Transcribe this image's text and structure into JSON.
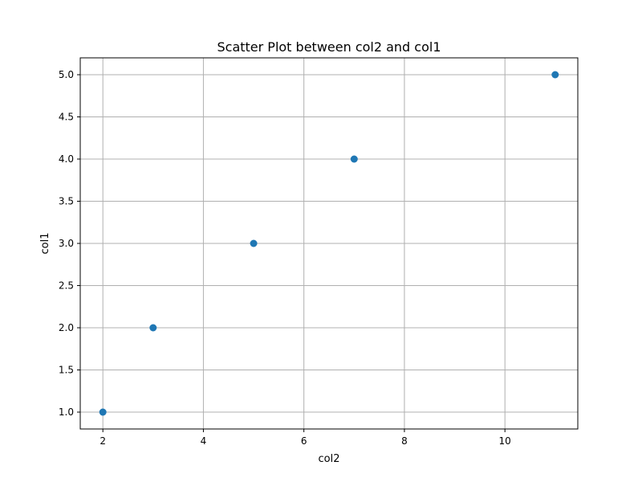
{
  "chart_data": {
    "type": "scatter",
    "title": "Scatter Plot between col2 and col1",
    "xlabel": "col2",
    "ylabel": "col1",
    "x": [
      2,
      3,
      5,
      7,
      11
    ],
    "y": [
      1.0,
      2.0,
      3.0,
      4.0,
      5.0
    ],
    "xlim": [
      1.55,
      11.45
    ],
    "ylim": [
      0.8,
      5.2
    ],
    "xticks": [
      2,
      4,
      6,
      8,
      10
    ],
    "xtick_labels": [
      "2",
      "4",
      "6",
      "8",
      "10"
    ],
    "yticks": [
      1.0,
      1.5,
      2.0,
      2.5,
      3.0,
      3.5,
      4.0,
      4.5,
      5.0
    ],
    "ytick_labels": [
      "1.0",
      "1.5",
      "2.0",
      "2.5",
      "3.0",
      "3.5",
      "4.0",
      "4.5",
      "5.0"
    ],
    "grid": true,
    "point_color": "#1f77b4",
    "grid_color": "#b0b0b0",
    "axis_color": "#000000"
  }
}
